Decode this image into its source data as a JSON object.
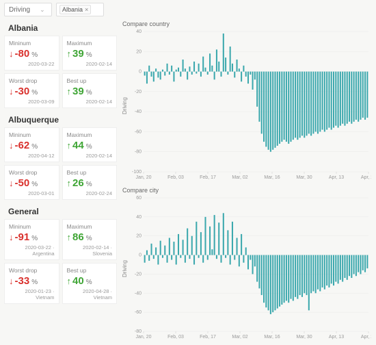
{
  "filters": {
    "mode_label": "Driving",
    "country_tag": "Albania"
  },
  "sections": [
    {
      "title": "Albania",
      "rows": [
        [
          {
            "label": "Mininum",
            "dir": "down",
            "pct": "-80",
            "date": "2020-03-22"
          },
          {
            "label": "Maximum",
            "dir": "up",
            "pct": "39",
            "date": "2020-02-14"
          }
        ],
        [
          {
            "label": "Worst drop",
            "dir": "down",
            "pct": "-30",
            "date": "2020-03-09"
          },
          {
            "label": "Best up",
            "dir": "up",
            "pct": "39",
            "date": "2020-02-14"
          }
        ]
      ]
    },
    {
      "title": "Albuquerque",
      "rows": [
        [
          {
            "label": "Mininum",
            "dir": "down",
            "pct": "-62",
            "date": "2020-04-12"
          },
          {
            "label": "Maximum",
            "dir": "up",
            "pct": "44",
            "date": "2020-02-14"
          }
        ],
        [
          {
            "label": "Worst drop",
            "dir": "down",
            "pct": "-50",
            "date": "2020-03-01"
          },
          {
            "label": "Best up",
            "dir": "up",
            "pct": "26",
            "date": "2020-02-24"
          }
        ]
      ]
    },
    {
      "title": "General",
      "rows": [
        [
          {
            "label": "Mininum",
            "dir": "down",
            "pct": "-91",
            "date": "2020-03-22 · Argentina"
          },
          {
            "label": "Maximum",
            "dir": "up",
            "pct": "86",
            "date": "2020-02-14 · Slovenia"
          }
        ],
        [
          {
            "label": "Worst drop",
            "dir": "down",
            "pct": "-33",
            "date": "2020-01-23 · Vietnam"
          },
          {
            "label": "Best up",
            "dir": "up",
            "pct": "40",
            "date": "2020-04-28 · Vietnam"
          }
        ]
      ]
    }
  ],
  "charts": [
    {
      "title": "Compare country",
      "ylabel": "Driving",
      "ylim": [
        -100,
        40
      ],
      "yticks": [
        -100,
        -80,
        -60,
        -40,
        -20,
        0,
        20,
        40
      ],
      "xticks": [
        "Jan, 20",
        "Feb, 03",
        "Feb, 17",
        "Mar, 02",
        "Mar, 16",
        "Mar, 30",
        "Apr, 13",
        "Apr, 27"
      ],
      "bar_color": "#3ba8ad",
      "grid_color": "#e8e8e8",
      "background": "#ffffff",
      "values": [
        -4,
        -12,
        6,
        -5,
        -10,
        3,
        -6,
        -8,
        2,
        -4,
        8,
        -3,
        6,
        -10,
        2,
        4,
        -5,
        12,
        3,
        -8,
        5,
        -3,
        10,
        -2,
        8,
        -5,
        15,
        4,
        -3,
        18,
        6,
        -8,
        22,
        10,
        -5,
        38,
        14,
        -3,
        25,
        8,
        -6,
        12,
        3,
        -10,
        6,
        -5,
        -12,
        -3,
        -18,
        -8,
        -35,
        -50,
        -62,
        -70,
        -75,
        -78,
        -80,
        -78,
        -76,
        -74,
        -72,
        -70,
        -68,
        -70,
        -72,
        -70,
        -68,
        -66,
        -68,
        -66,
        -64,
        -66,
        -64,
        -62,
        -64,
        -62,
        -60,
        -62,
        -60,
        -58,
        -60,
        -58,
        -56,
        -58,
        -56,
        -54,
        -56,
        -54,
        -52,
        -54,
        -52,
        -50,
        -52,
        -50,
        -48,
        -50,
        -48,
        -46,
        -48,
        -46
      ]
    },
    {
      "title": "Compare city",
      "ylabel": "Driving",
      "ylim": [
        -80,
        60
      ],
      "yticks": [
        -80,
        -60,
        -40,
        -20,
        0,
        20,
        40,
        60
      ],
      "xticks": [
        "Jan, 20",
        "Feb, 03",
        "Feb, 17",
        "Mar, 02",
        "Mar, 16",
        "Mar, 30",
        "Apr, 13",
        "Apr, 27"
      ],
      "bar_color": "#3ba8ad",
      "grid_color": "#e8e8e8",
      "background": "#ffffff",
      "values": [
        -8,
        5,
        -6,
        12,
        -4,
        8,
        -10,
        15,
        -3,
        10,
        -8,
        18,
        -5,
        14,
        -10,
        22,
        -3,
        16,
        -8,
        28,
        -4,
        20,
        -10,
        35,
        -3,
        24,
        -8,
        40,
        -5,
        30,
        6,
        42,
        -4,
        34,
        -8,
        44,
        -3,
        26,
        -10,
        35,
        -5,
        18,
        -12,
        22,
        -8,
        8,
        -15,
        -5,
        -20,
        -12,
        -28,
        -35,
        -42,
        -50,
        -55,
        -58,
        -62,
        -60,
        -58,
        -56,
        -54,
        -52,
        -50,
        -48,
        -50,
        -46,
        -48,
        -44,
        -46,
        -42,
        -44,
        -40,
        -42,
        -58,
        -40,
        -38,
        -40,
        -36,
        -38,
        -34,
        -36,
        -32,
        -34,
        -30,
        -32,
        -28,
        -30,
        -26,
        -28,
        -24,
        -26,
        -22,
        -24,
        -20,
        -22,
        -18,
        -20,
        -16,
        -18,
        -14
      ]
    }
  ]
}
